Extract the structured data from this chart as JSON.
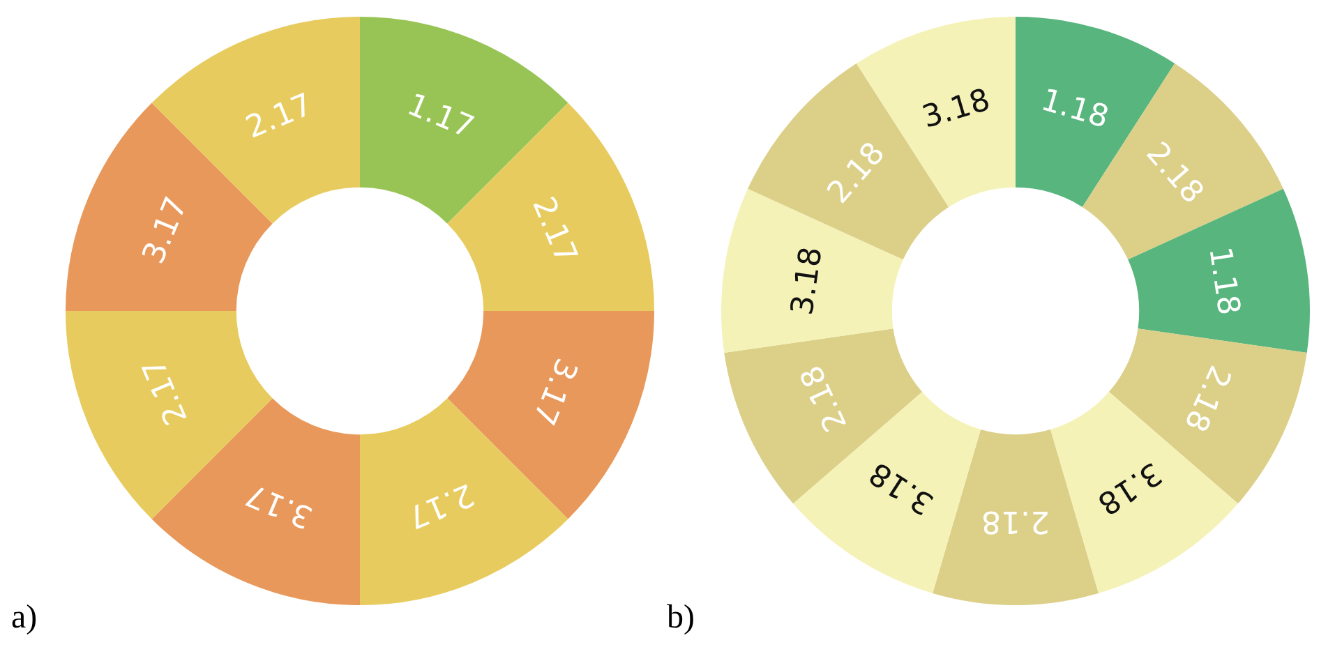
{
  "chart_data": [
    {
      "type": "donut",
      "annotations": [
        "a)"
      ],
      "categories": [
        "1.17",
        "2.17",
        "3.17",
        "2.17",
        "3.17",
        "2.17",
        "3.17",
        "2.17"
      ],
      "values": [
        12.5,
        12.5,
        12.5,
        12.5,
        12.5,
        12.5,
        12.5,
        12.5
      ],
      "colors": [
        "#98c455",
        "#e8cb5e",
        "#e8985a",
        "#e8cb5e",
        "#e8985a",
        "#e8cb5e",
        "#e8985a",
        "#e8cb5e"
      ],
      "legend": false
    },
    {
      "type": "donut",
      "annotations": [
        "b)"
      ],
      "categories": [
        "1.18",
        "2.18",
        "1.18",
        "2.18",
        "3.18",
        "2.18",
        "3.18",
        "2.18",
        "3.18",
        "2.18",
        "3.18"
      ],
      "values": [
        9.09,
        9.09,
        9.09,
        9.09,
        9.09,
        9.09,
        9.09,
        9.09,
        9.09,
        9.09,
        9.09
      ],
      "colors": [
        "#57b57d",
        "#dccf88",
        "#57b57d",
        "#dccf88",
        "#f5f2b8",
        "#dccf88",
        "#f5f2b8",
        "#dccf88",
        "#f5f2b8",
        "#dccf88",
        "#f5f2b8"
      ],
      "legend": false
    }
  ]
}
